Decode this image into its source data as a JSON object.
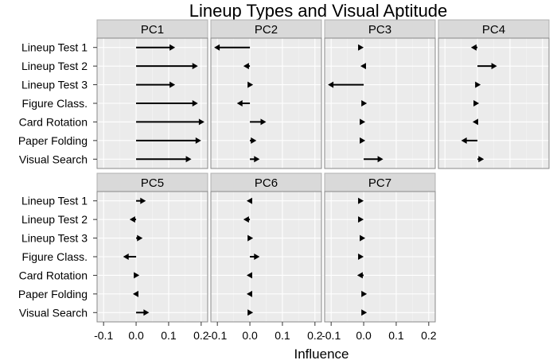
{
  "chart_data": {
    "type": "arrow",
    "title": "Lineup Types and Visual Aptitude",
    "xlabel": "Influence",
    "ylabel": "",
    "xlim": [
      -0.12,
      0.22
    ],
    "x_ticks": [
      "-0.1",
      "0.0",
      "0.1",
      "0.2"
    ],
    "x_tick_values": [
      -0.1,
      0.0,
      0.1,
      0.2
    ],
    "variables": [
      "Lineup Test 1",
      "Lineup Test 2",
      "Lineup Test 3",
      "Figure Class.",
      "Card Rotation",
      "Paper Folding",
      "Visual Search"
    ],
    "panels": [
      {
        "name": "PC1",
        "values": [
          0.12,
          0.19,
          0.12,
          0.19,
          0.21,
          0.2,
          0.17
        ]
      },
      {
        "name": "PC2",
        "values": [
          -0.11,
          -0.02,
          0.01,
          -0.04,
          0.05,
          0.02,
          0.03
        ]
      },
      {
        "name": "PC3",
        "values": [
          0.0,
          -0.01,
          -0.11,
          0.01,
          0.005,
          0.005,
          0.06
        ]
      },
      {
        "name": "PC4",
        "values": [
          -0.02,
          0.06,
          0.01,
          0.005,
          -0.015,
          -0.05,
          0.02
        ]
      },
      {
        "name": "PC5",
        "values": [
          0.03,
          -0.02,
          0.02,
          -0.04,
          0.01,
          -0.01,
          0.04
        ]
      },
      {
        "name": "PC6",
        "values": [
          -0.01,
          -0.02,
          0.01,
          0.03,
          -0.01,
          -0.01,
          0.01
        ]
      },
      {
        "name": "PC7",
        "values": [
          0.0,
          0.0,
          0.005,
          0.0,
          -0.02,
          0.01,
          0.01
        ]
      }
    ],
    "grid": true
  }
}
